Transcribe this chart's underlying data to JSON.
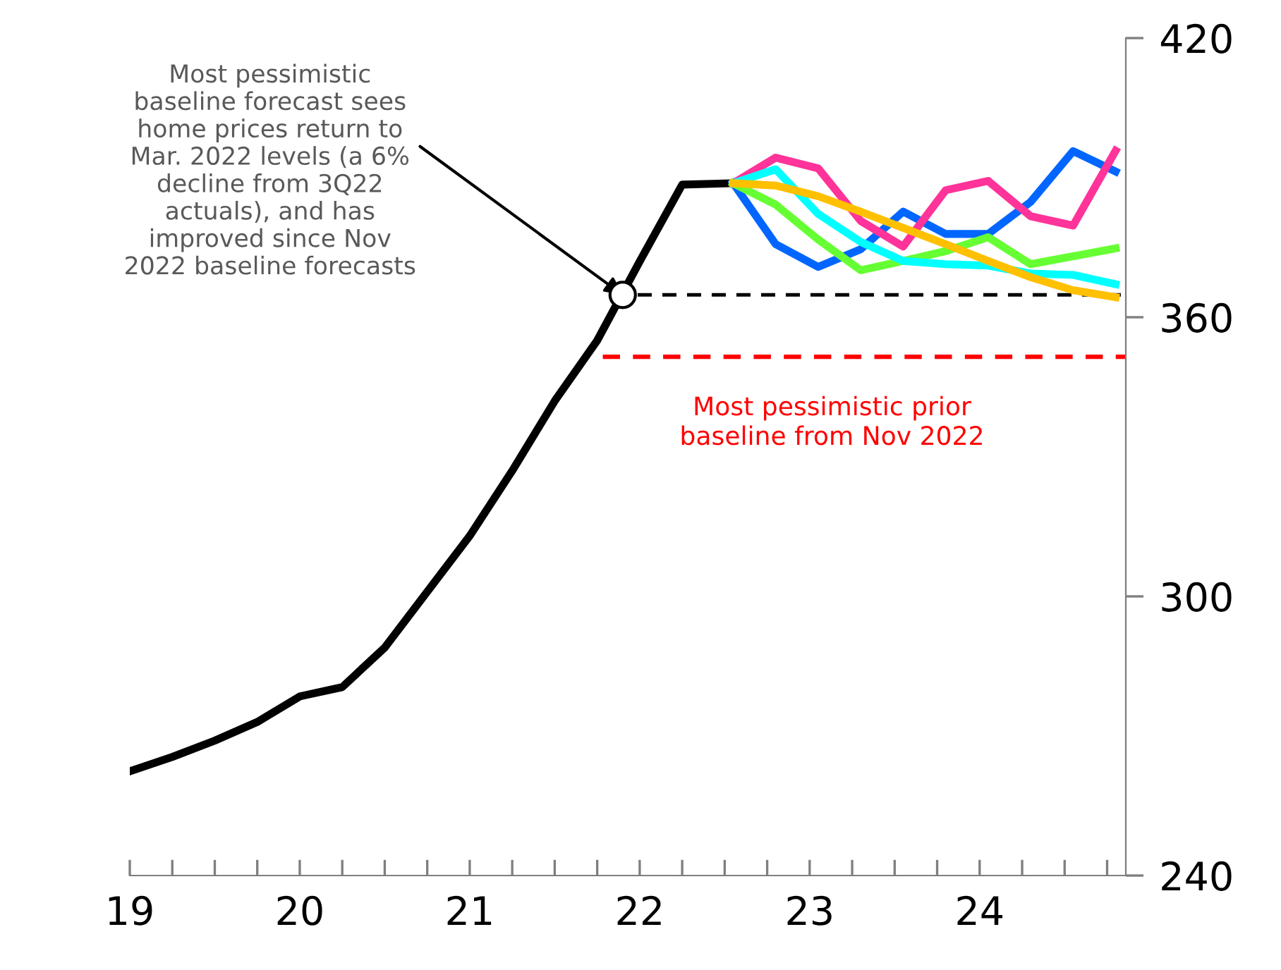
{
  "chart_data": {
    "type": "line",
    "series": [
      {
        "color": "#000000",
        "x": [
          19.0,
          19.25,
          19.5,
          19.75,
          20.0,
          20.25,
          20.5,
          20.75,
          21.0,
          21.25,
          21.5,
          21.75,
          22.0,
          22.25,
          22.55
        ],
        "values": [
          262.4,
          265.5,
          269,
          273,
          278.5,
          280.5,
          289,
          301,
          313,
          327,
          342,
          355,
          372,
          388.5,
          388.8
        ]
      },
      {
        "color": "#0066ff",
        "x": [
          22.55,
          22.8,
          23.05,
          23.3,
          23.55,
          23.8,
          24.05,
          24.3,
          24.55,
          24.8
        ],
        "values": [
          388.8,
          375.7,
          370.8,
          374.6,
          382.7,
          377.9,
          377.9,
          384.8,
          395.7,
          391.3
        ]
      },
      {
        "color": "#ff3399",
        "x": [
          22.55,
          22.8,
          23.05,
          23.3,
          23.55,
          23.8,
          24.05,
          24.3,
          24.55,
          24.8
        ],
        "values": [
          388.8,
          394.3,
          392.0,
          380.7,
          375.2,
          387.3,
          389.3,
          381.7,
          379.7,
          395.8
        ]
      },
      {
        "color": "#66ff33",
        "x": [
          22.55,
          22.8,
          23.05,
          23.3,
          23.55,
          23.8,
          24.05,
          24.3,
          24.55,
          24.8
        ],
        "values": [
          388.8,
          384.2,
          376.7,
          370.1,
          372.1,
          374.2,
          377.2,
          371.4,
          373.1,
          374.8
        ]
      },
      {
        "color": "#00ffff",
        "x": [
          22.55,
          22.8,
          23.05,
          23.3,
          23.55,
          23.8,
          24.05,
          24.3,
          24.55,
          24.8
        ],
        "values": [
          388.8,
          391.8,
          382.2,
          376.2,
          372.1,
          371.4,
          371.1,
          369.4,
          369.1,
          367.1
        ]
      },
      {
        "color": "#ffc000",
        "x": [
          22.55,
          22.8,
          23.05,
          23.3,
          23.55,
          23.8,
          24.05,
          24.3,
          24.55,
          24.8
        ],
        "values": [
          388.8,
          388.3,
          386.0,
          382.7,
          379.2,
          375.7,
          372.1,
          368.6,
          365.8,
          364.3
        ]
      }
    ],
    "xlim": [
      19,
      24.86
    ],
    "xticks": [
      19,
      {
        "value": 19.25,
        "label": null
      },
      {
        "value": 19.5,
        "label": null
      },
      {
        "value": 19.75,
        "label": null
      },
      20,
      {
        "value": 20.25,
        "label": null
      },
      {
        "value": 20.5,
        "label": null
      },
      {
        "value": 20.75,
        "label": null
      },
      21,
      {
        "value": 21.25,
        "label": null
      },
      {
        "value": 21.5,
        "label": null
      },
      {
        "value": 21.75,
        "label": null
      },
      22,
      {
        "value": 22.25,
        "label": null
      },
      {
        "value": 22.5,
        "label": null
      },
      {
        "value": 22.75,
        "label": null
      },
      23,
      {
        "value": 23.25,
        "label": null
      },
      {
        "value": 23.5,
        "label": null
      },
      {
        "value": 23.75,
        "label": null
      },
      24,
      {
        "value": 24.25,
        "label": null
      },
      {
        "value": 24.5,
        "label": null
      },
      {
        "value": 24.75,
        "label": null
      }
    ],
    "ylim": [
      240,
      420
    ],
    "yticks": [
      240,
      300,
      360,
      420
    ],
    "ref_lines": [
      {
        "axis": "y",
        "value": 364.8,
        "color": "#000000",
        "line_style": "dashed"
      },
      {
        "axis": "y",
        "value": 351.5,
        "color": "#ff0000",
        "line_style": "dashed",
        "label": "Most pessimistic prior\nbaseline from Nov 2022"
      }
    ],
    "annotations": [
      {
        "text": "Most pessimistic\nbaseline forecast sees\nhome prices return to\nMar. 2022 levels (a 6%\ndecline from 3Q22\nactuals), and has\nimproved since Nov\n2022 baseline forecasts",
        "x": 21.9,
        "y": 364.8
      }
    ],
    "grid": false,
    "legend": false,
    "marker": "none",
    "line_style": "solid"
  }
}
